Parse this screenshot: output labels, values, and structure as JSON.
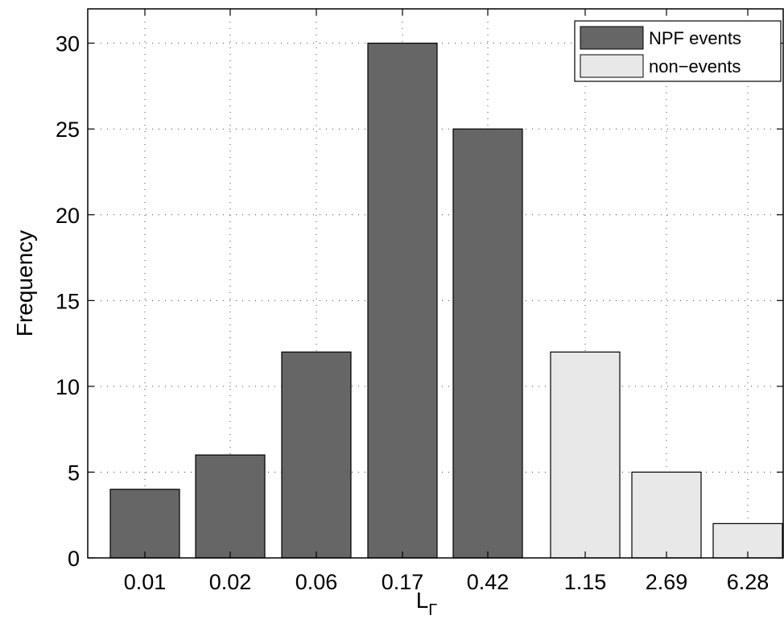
{
  "chart_data": {
    "type": "bar",
    "categories": [
      "0.01",
      "0.02",
      "0.06",
      "0.17",
      "0.42",
      "1.15",
      "2.69",
      "6.28"
    ],
    "series": [
      {
        "name": "NPF events",
        "color": "#666666",
        "values": [
          4,
          6,
          12,
          30,
          25,
          null,
          null,
          null
        ]
      },
      {
        "name": "non−events",
        "color": "#e8e8e8",
        "values": [
          null,
          null,
          null,
          null,
          null,
          12,
          5,
          2
        ]
      }
    ],
    "xlabel": "L",
    "xlabel_subscript": "Γ",
    "ylabel": "Frequency",
    "ylim": [
      0,
      32
    ],
    "yticks": [
      0,
      5,
      10,
      15,
      20,
      25,
      30
    ],
    "grid": true,
    "legend_position": "top-right"
  }
}
